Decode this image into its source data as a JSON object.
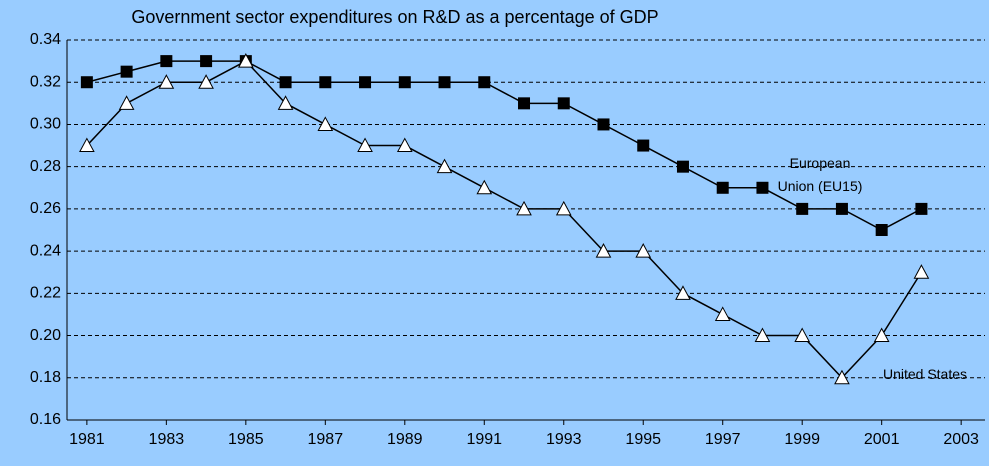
{
  "chart_data": {
    "type": "line",
    "title": "Government sector expenditures  on R&D as a percentage of GDP",
    "x": [
      1981,
      1982,
      1983,
      1984,
      1985,
      1986,
      1987,
      1988,
      1989,
      1990,
      1991,
      1992,
      1993,
      1994,
      1995,
      1996,
      1997,
      1998,
      1999,
      2000,
      2001,
      2002
    ],
    "series": [
      {
        "name": "European Union (EU15)",
        "color": "#000000",
        "marker": "square",
        "values": [
          0.32,
          0.325,
          0.33,
          0.33,
          0.33,
          0.32,
          0.32,
          0.32,
          0.32,
          0.32,
          0.32,
          0.31,
          0.31,
          0.3,
          0.29,
          0.28,
          0.27,
          0.27,
          0.26,
          0.26,
          0.25,
          0.26
        ]
      },
      {
        "name": "United States",
        "color": "#000000",
        "marker": "triangle",
        "values": [
          0.29,
          0.31,
          0.32,
          0.32,
          0.33,
          0.31,
          0.3,
          0.29,
          0.29,
          0.28,
          0.27,
          0.26,
          0.26,
          0.24,
          0.24,
          0.22,
          0.21,
          0.2,
          0.2,
          0.18,
          0.2,
          0.23
        ]
      }
    ],
    "xlim": [
      1980.5,
      2003.6
    ],
    "xticks": [
      1981,
      1983,
      1985,
      1987,
      1989,
      1991,
      1993,
      1995,
      1997,
      1999,
      2001,
      2003
    ],
    "ylim": [
      0.16,
      0.34
    ],
    "yticks": [
      0.16,
      0.18,
      {
        "value": 0.2,
        "label": "0.20"
      },
      0.22,
      0.24,
      0.26,
      0.28,
      {
        "value": 0.3,
        "label": "0.30"
      },
      0.32,
      0.34
    ],
    "grid": true,
    "background": "#99ccff"
  }
}
